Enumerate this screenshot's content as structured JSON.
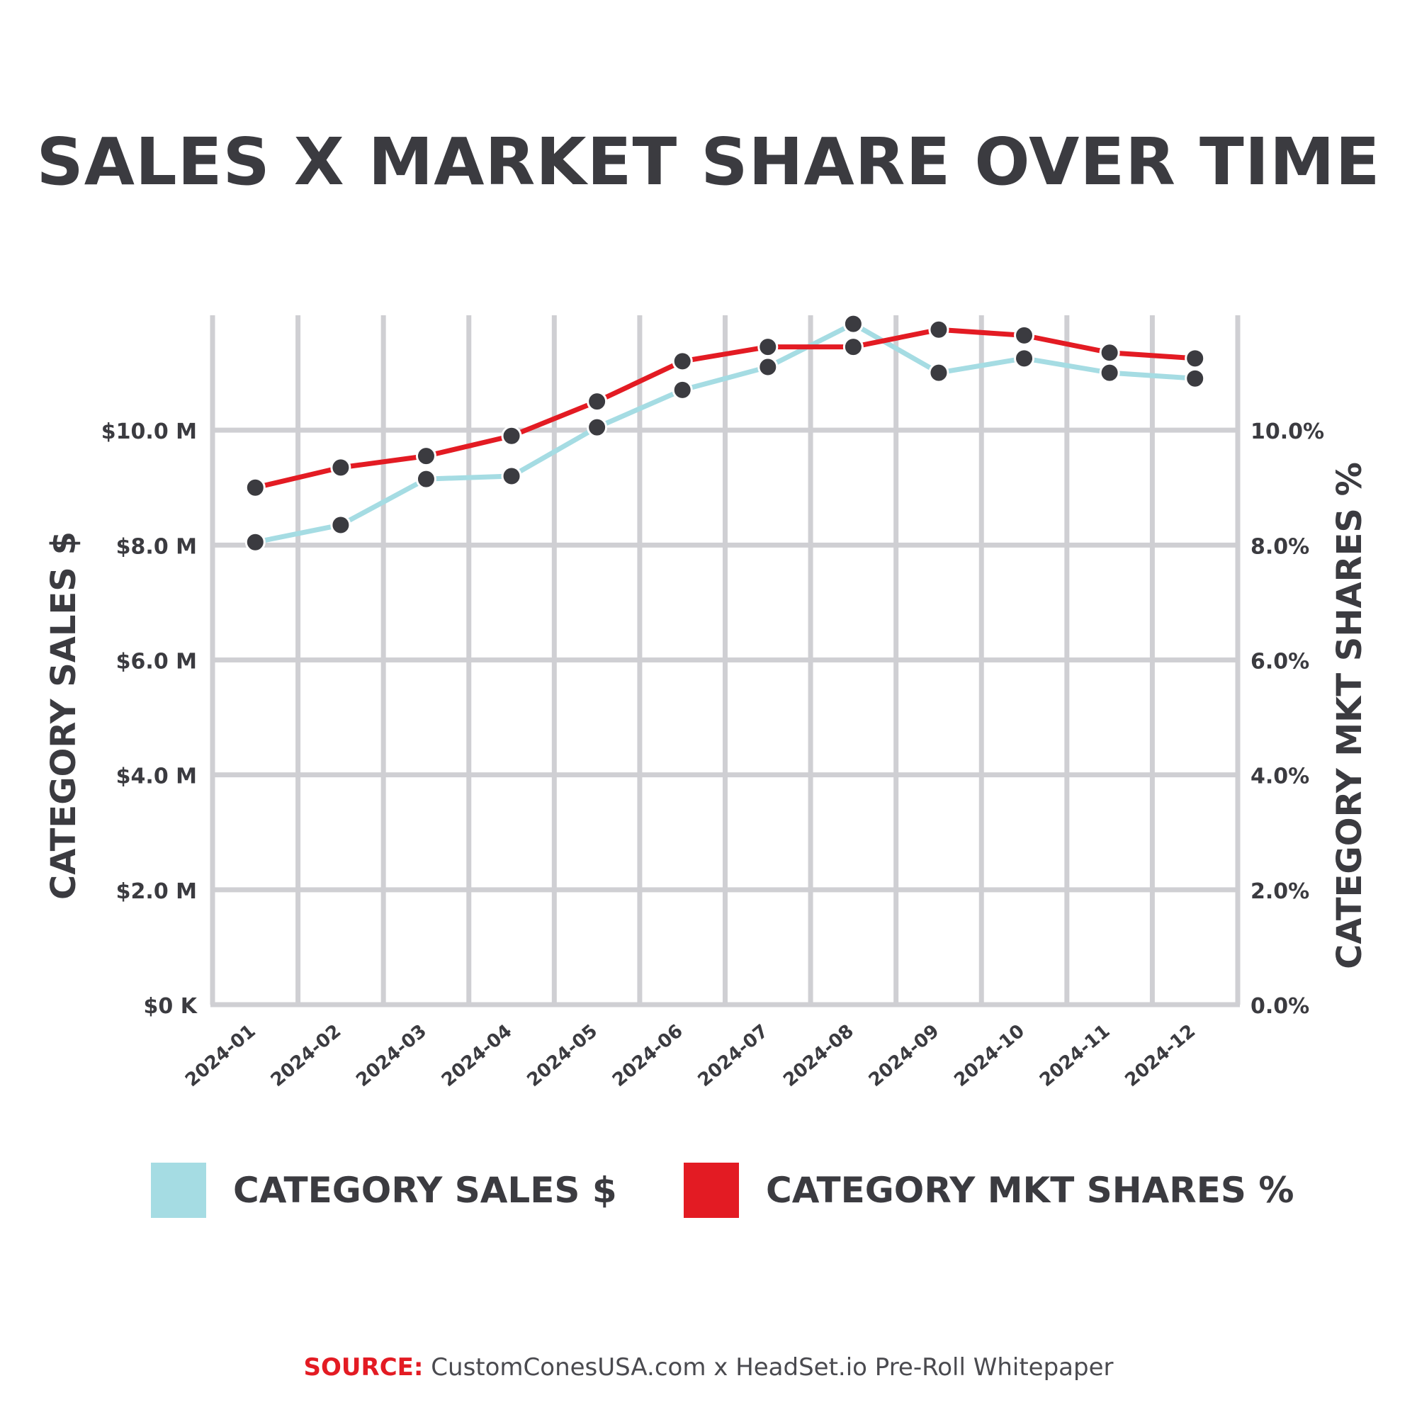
{
  "title": "SALES X MARKET SHARE OVER TIME",
  "left_axis_title": "CATEGORY SALES $",
  "right_axis_title": "CATEGORY MKT SHARES %",
  "legend": [
    {
      "label": "CATEGORY SALES $",
      "color": "#a5dce3"
    },
    {
      "label": "CATEGORY MKT SHARES %",
      "color": "#e31b23"
    }
  ],
  "source": {
    "label": "SOURCE:",
    "text": "CustomConesUSA.com x HeadSet.io Pre-Roll Whitepaper"
  },
  "chart_data": {
    "type": "line",
    "title": "SALES X MARKET SHARE OVER TIME",
    "categories": [
      "2024-01",
      "2024-02",
      "2024-03",
      "2024-04",
      "2024-05",
      "2024-06",
      "2024-07",
      "2024-08",
      "2024-09",
      "2024-10",
      "2024-11",
      "2024-12"
    ],
    "left_axis": {
      "label": "CATEGORY SALES $",
      "ticks": [
        "$0 K",
        "$2.0 M",
        "$4.0 M",
        "$6.0 M",
        "$8.0 M",
        "$10.0 M"
      ],
      "tick_values": [
        0,
        2,
        4,
        6,
        8,
        10
      ],
      "range": [
        0,
        12.0
      ]
    },
    "right_axis": {
      "label": "CATEGORY MKT SHARES %",
      "ticks": [
        "0.0%",
        "2.0%",
        "4.0%",
        "6.0%",
        "8.0%",
        "10.0%"
      ],
      "tick_values": [
        0,
        2,
        4,
        6,
        8,
        10
      ],
      "range": [
        0,
        12.0
      ]
    },
    "grid": true,
    "legend_position": "bottom",
    "series": [
      {
        "name": "CATEGORY SALES $",
        "axis": "left",
        "color": "#a5dce3",
        "values": [
          8.05,
          8.35,
          9.15,
          9.2,
          10.05,
          10.7,
          11.1,
          11.85,
          11.0,
          11.25,
          11.0,
          10.9
        ]
      },
      {
        "name": "CATEGORY MKT SHARES %",
        "axis": "right",
        "color": "#e31b23",
        "values": [
          9.0,
          9.35,
          9.55,
          9.9,
          10.5,
          11.2,
          11.45,
          11.45,
          11.75,
          11.65,
          11.35,
          11.25
        ]
      }
    ],
    "marker_color": "#3b3b40",
    "grid_color": "#cfcfd3"
  }
}
